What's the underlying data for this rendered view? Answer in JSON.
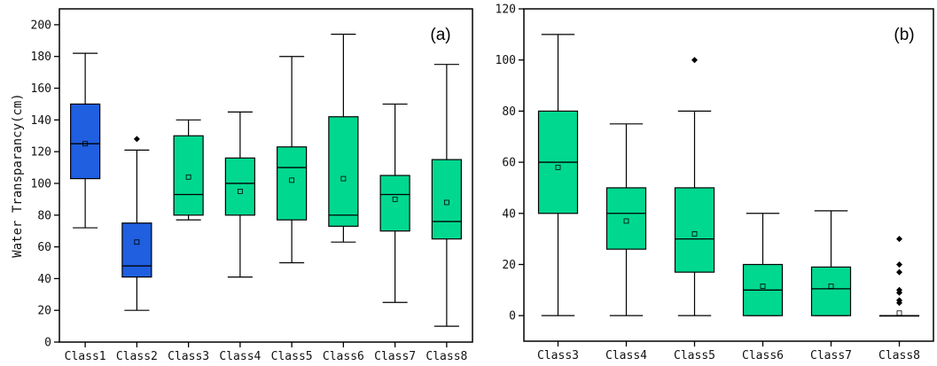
{
  "chart_data": [
    {
      "type": "box",
      "panel_label": "(a)",
      "ylabel": "Water Transparancy(cm)",
      "ylim": [
        0,
        210
      ],
      "yticks": [
        0,
        20,
        40,
        60,
        80,
        100,
        120,
        140,
        160,
        180,
        200
      ],
      "categories": [
        "Class1",
        "Class2",
        "Class3",
        "Class4",
        "Class5",
        "Class6",
        "Class7",
        "Class8"
      ],
      "boxes": [
        {
          "min": 72,
          "q1": 103,
          "median": 125,
          "q3": 150,
          "max": 182,
          "mean": 125,
          "outliers": [],
          "color": "#1f5fe0"
        },
        {
          "min": 20,
          "q1": 41,
          "median": 48,
          "q3": 75,
          "max": 121,
          "mean": 63,
          "outliers": [
            128
          ],
          "color": "#1f5fe0"
        },
        {
          "min": 77,
          "q1": 80,
          "median": 93,
          "q3": 130,
          "max": 140,
          "mean": 104,
          "outliers": [],
          "color": "#00d890"
        },
        {
          "min": 41,
          "q1": 80,
          "median": 100,
          "q3": 116,
          "max": 145,
          "mean": 95,
          "outliers": [],
          "color": "#00d890"
        },
        {
          "min": 50,
          "q1": 77,
          "median": 110,
          "q3": 123,
          "max": 180,
          "mean": 102,
          "outliers": [],
          "color": "#00d890"
        },
        {
          "min": 63,
          "q1": 73,
          "median": 80,
          "q3": 142,
          "max": 194,
          "mean": 103,
          "outliers": [],
          "color": "#00d890"
        },
        {
          "min": 25,
          "q1": 70,
          "median": 93,
          "q3": 105,
          "max": 150,
          "mean": 90,
          "outliers": [],
          "color": "#00d890"
        },
        {
          "min": 10,
          "q1": 65,
          "median": 76,
          "q3": 115,
          "max": 175,
          "mean": 88,
          "outliers": [],
          "color": "#00d890"
        }
      ]
    },
    {
      "type": "box",
      "panel_label": "(b)",
      "ylabel": "",
      "ylim": [
        -10,
        120
      ],
      "yticks": [
        0,
        20,
        40,
        60,
        80,
        100,
        120
      ],
      "categories": [
        "Class3",
        "Class4",
        "Class5",
        "Class6",
        "Class7",
        "Class8"
      ],
      "boxes": [
        {
          "min": 0,
          "q1": 40,
          "median": 60,
          "q3": 80,
          "max": 110,
          "mean": 58,
          "outliers": [],
          "color": "#00d890"
        },
        {
          "min": 0,
          "q1": 26,
          "median": 40,
          "q3": 50,
          "max": 75,
          "mean": 37,
          "outliers": [],
          "color": "#00d890"
        },
        {
          "min": 0,
          "q1": 17,
          "median": 30,
          "q3": 50,
          "max": 80,
          "mean": 32,
          "outliers": [
            100
          ],
          "color": "#00d890"
        },
        {
          "min": 0,
          "q1": 0,
          "median": 10,
          "q3": 20,
          "max": 40,
          "mean": 11.5,
          "outliers": [],
          "color": "#00d890"
        },
        {
          "min": 0,
          "q1": 0,
          "median": 10.5,
          "q3": 19,
          "max": 41,
          "mean": 11.5,
          "outliers": [],
          "color": "#00d890"
        },
        {
          "min": 0,
          "q1": 0,
          "median": 0,
          "q3": 0,
          "max": 0,
          "mean": 1,
          "outliers": [
            5,
            6,
            9,
            10,
            17,
            20,
            30
          ],
          "color": "#00d890"
        }
      ]
    }
  ]
}
